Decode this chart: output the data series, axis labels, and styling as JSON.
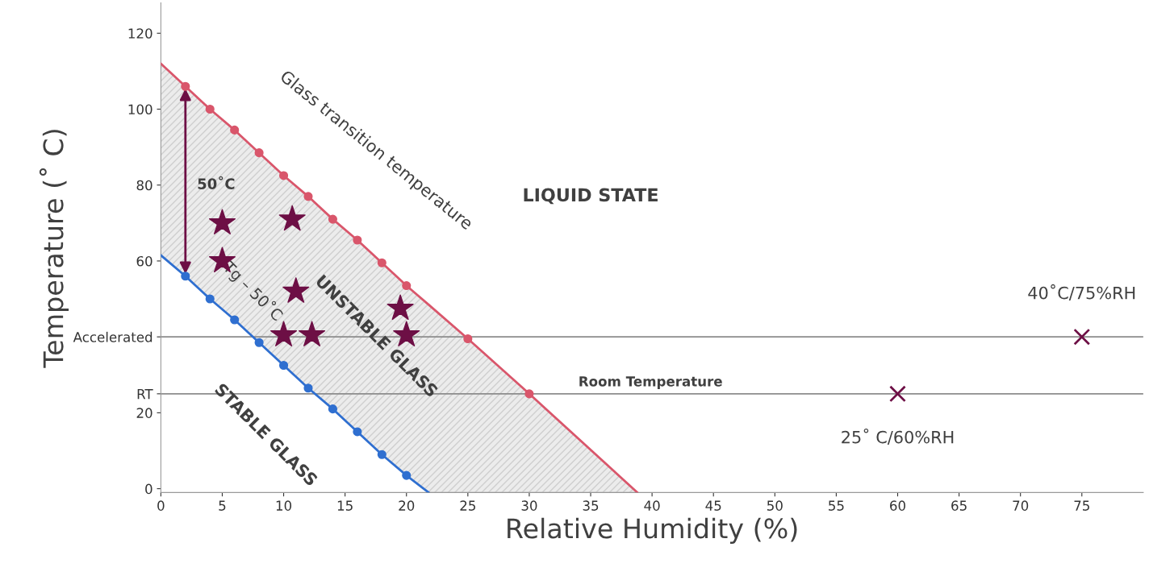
{
  "chart_data": {
    "type": "line",
    "xlabel": "Relative Humidity (%)",
    "ylabel": "Temperature (˚ C)",
    "xlim": [
      0,
      80
    ],
    "xticks": [
      0,
      5,
      10,
      15,
      20,
      25,
      30,
      35,
      40,
      45,
      50,
      55,
      60,
      65,
      70,
      75
    ],
    "ylim": [
      -1,
      128
    ],
    "yticks": [
      0,
      20,
      {
        "value": 25,
        "label": "RT"
      },
      {
        "value": 40,
        "label": "Accelerated"
      },
      60,
      80,
      100,
      120
    ],
    "grid": false,
    "legend": false,
    "series": [
      {
        "color": "#d9566b",
        "marker": "none",
        "x": [
          0,
          2,
          4,
          6,
          8,
          10,
          12,
          14,
          16,
          18,
          20,
          21.8,
          25,
          30,
          38.8
        ],
        "values": [
          112,
          106,
          100,
          94.5,
          88.5,
          82.5,
          77,
          71,
          65.5,
          59.5,
          53.5,
          48.5,
          39.5,
          25,
          -1
        ],
        "upper": [
          112,
          106,
          100,
          94.5,
          88.5,
          82.5,
          77,
          71,
          65.5,
          59.5,
          53.5,
          48.5,
          39.5,
          25,
          -1
        ],
        "lower": [
          61.5,
          56,
          50,
          44.5,
          38.5,
          32.5,
          26.5,
          21,
          15,
          9,
          3.5,
          -1,
          -1,
          -1,
          -1
        ]
      },
      {
        "color": "#2f6fd0",
        "marker": "none",
        "x": [
          0,
          2,
          4,
          6,
          8,
          10,
          12,
          14,
          16,
          18,
          20,
          21.8
        ],
        "values": [
          61.5,
          56,
          50,
          44.5,
          38.5,
          32.5,
          26.5,
          21,
          15,
          9,
          3.5,
          -1
        ]
      },
      {
        "type": "scatter",
        "color": "#d9566b",
        "marker": "circle",
        "x": [
          2,
          4,
          6,
          8,
          10,
          12,
          14,
          16,
          18,
          20,
          25,
          30
        ],
        "values": [
          106,
          100,
          94.5,
          88.5,
          82.5,
          77,
          71,
          65.5,
          59.5,
          53.5,
          39.5,
          25
        ]
      },
      {
        "type": "scatter",
        "color": "#2f6fd0",
        "marker": "circle",
        "x": [
          2,
          4,
          6,
          8,
          10,
          12,
          14,
          16,
          18,
          20
        ],
        "values": [
          56,
          50,
          44.5,
          38.5,
          32.5,
          26.5,
          21,
          15,
          9,
          3.5
        ]
      },
      {
        "type": "scatter",
        "color": "#6d0f45",
        "marker": "star",
        "x": [
          5,
          10.7,
          5,
          11,
          19.5,
          10,
          12.3,
          20
        ],
        "values": [
          70,
          71,
          60,
          52,
          47.5,
          40.5,
          40.5,
          40.5
        ]
      },
      {
        "type": "scatter",
        "color": "#6d0f45",
        "marker": "cross",
        "x": [
          75,
          60
        ],
        "values": [
          40,
          25
        ]
      }
    ],
    "ref_lines": [
      {
        "axis": "y",
        "value": 40,
        "color": "#8c8c8c"
      },
      {
        "axis": "y",
        "value": 25,
        "label": "Room Temperature",
        "color": "#8c8c8c"
      }
    ],
    "annotations": [
      "LIQUID STATE",
      "UNSTABLE GLASS",
      "STABLE GLASS",
      "Glass transition temperature",
      "Tg – 50˚C",
      "50˚C",
      {
        "text": "40˚C/75%RH",
        "x": 75,
        "y": 40
      },
      {
        "text": "25˚ C/60%RH",
        "x": 60,
        "y": 25
      }
    ]
  }
}
